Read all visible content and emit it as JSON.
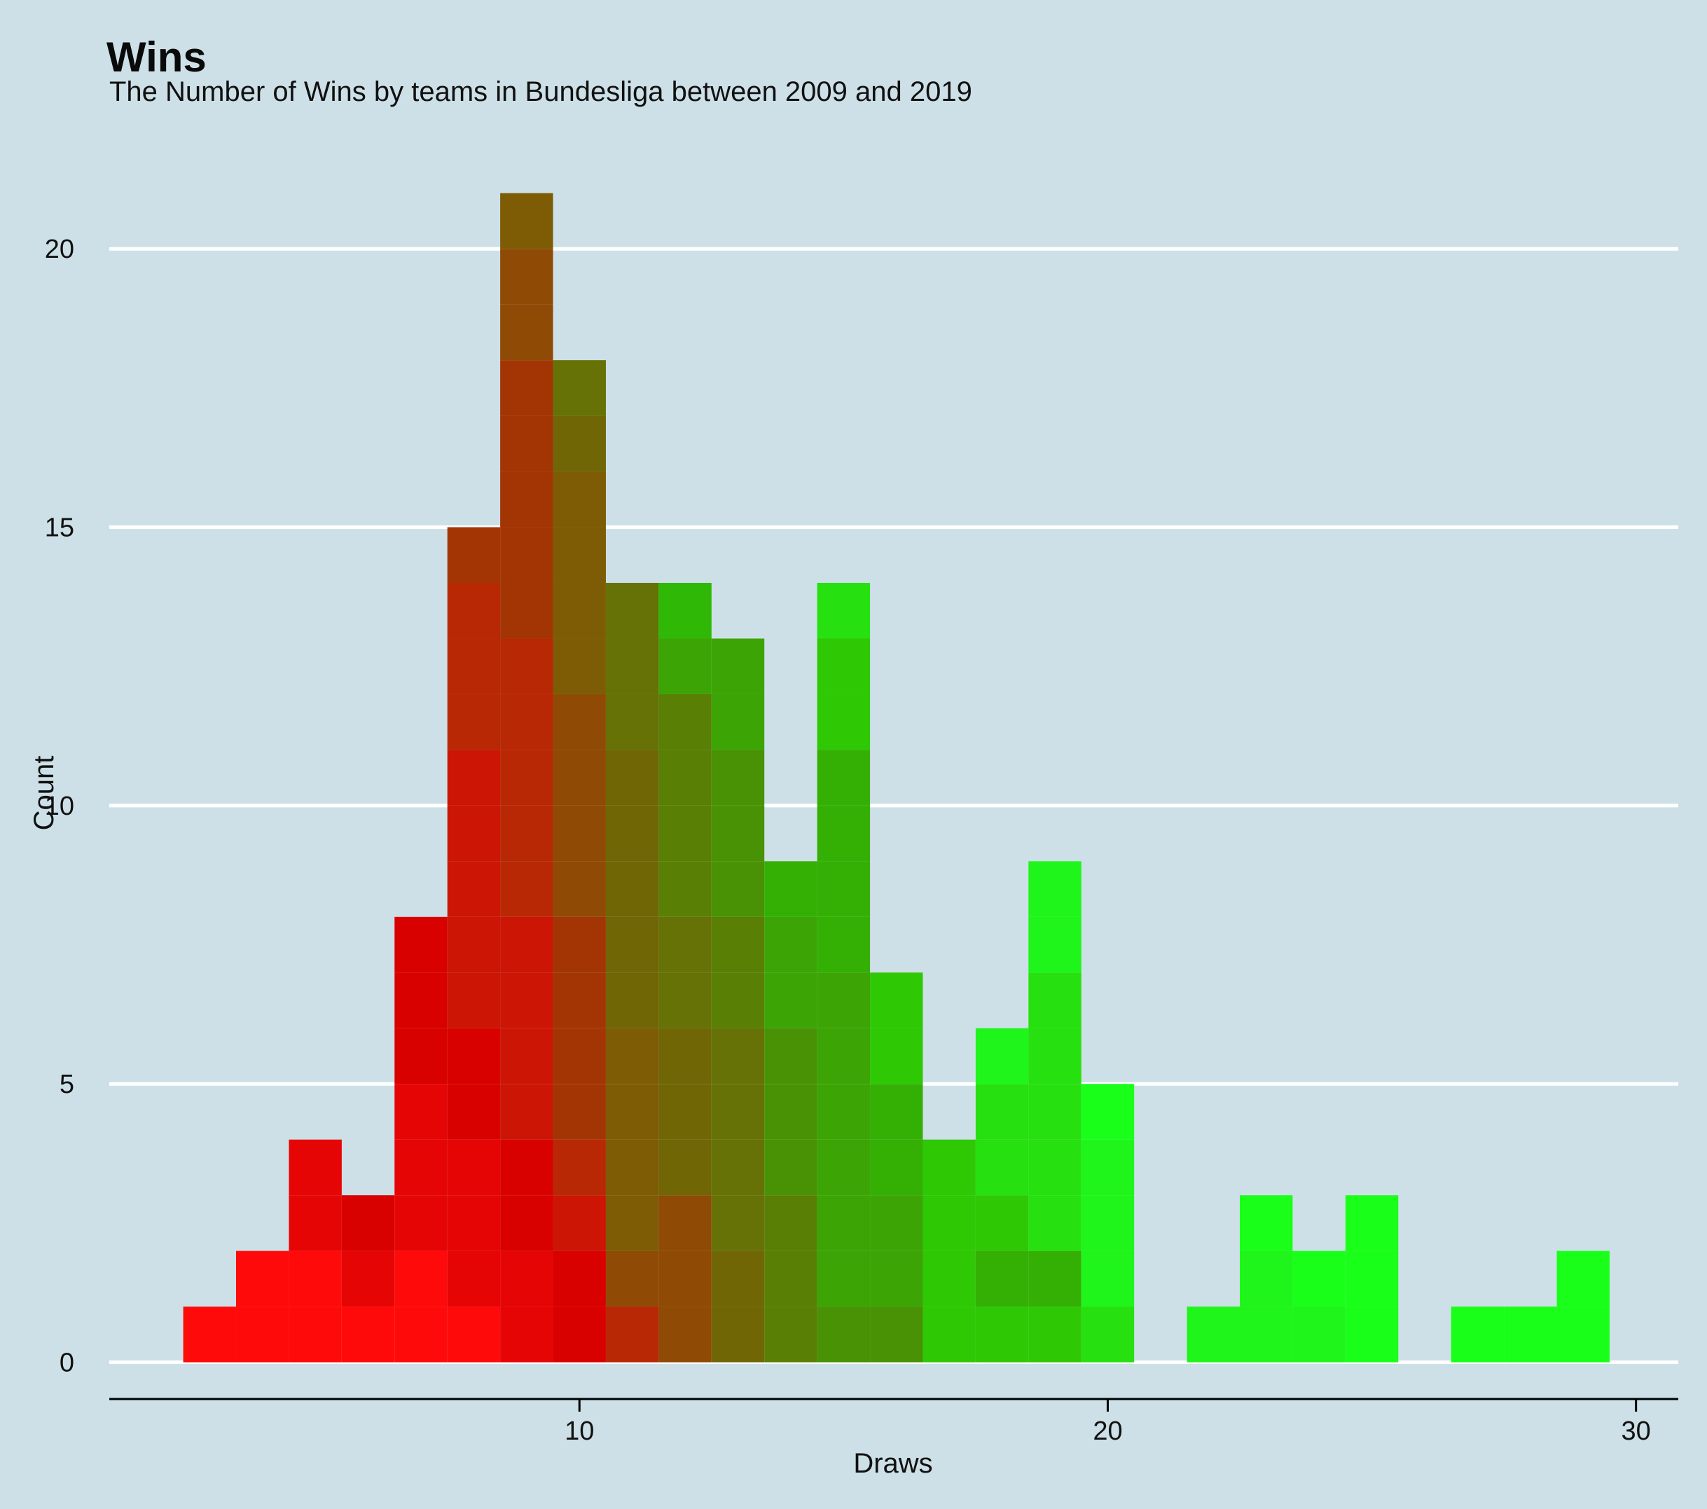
{
  "chart_data": {
    "type": "bar",
    "title": "Wins",
    "subtitle": "The Number of Wins by teams in Bundesliga between 2009 and 2019",
    "xlabel": "Draws",
    "ylabel": "Count",
    "xlim": [
      1.1,
      30.8
    ],
    "ylim": [
      -1.05,
      21.5
    ],
    "x_ticks": [
      10,
      20,
      30
    ],
    "y_ticks": [
      0,
      5,
      10,
      15,
      20
    ],
    "grid": "horizontal",
    "legend": "none",
    "bin_width": 1,
    "colors": {
      "background": "#cde0e7",
      "gridline": "#ffffff",
      "axis": "#000000",
      "low": "#ff0000",
      "high": "#1aff1a"
    },
    "bins": [
      {
        "x": 3,
        "segments": [
          {
            "count": 1,
            "color": "#ff0a0a"
          }
        ]
      },
      {
        "x": 4,
        "segments": [
          {
            "count": 1,
            "color": "#ff0a0a"
          },
          {
            "count": 1,
            "color": "#ff0a0a"
          }
        ]
      },
      {
        "x": 5,
        "segments": [
          {
            "count": 1,
            "color": "#ff0a0a"
          },
          {
            "count": 1,
            "color": "#ff0a0a"
          },
          {
            "count": 1,
            "color": "#e60505"
          },
          {
            "count": 1,
            "color": "#e60505"
          }
        ]
      },
      {
        "x": 6,
        "segments": [
          {
            "count": 1,
            "color": "#ff0a0a"
          },
          {
            "count": 1,
            "color": "#e60505"
          },
          {
            "count": 1,
            "color": "#d90000"
          }
        ]
      },
      {
        "x": 7,
        "segments": [
          {
            "count": 1,
            "color": "#ff0a0a"
          },
          {
            "count": 1,
            "color": "#ff0a0a"
          },
          {
            "count": 1,
            "color": "#e60505"
          },
          {
            "count": 1,
            "color": "#e60505"
          },
          {
            "count": 1,
            "color": "#e60505"
          },
          {
            "count": 1,
            "color": "#d90000"
          },
          {
            "count": 1,
            "color": "#d90000"
          },
          {
            "count": 1,
            "color": "#d90000"
          }
        ]
      },
      {
        "x": 8,
        "segments": [
          {
            "count": 1,
            "color": "#ff0a0a"
          },
          {
            "count": 1,
            "color": "#e60505"
          },
          {
            "count": 1,
            "color": "#e60505"
          },
          {
            "count": 1,
            "color": "#e60505"
          },
          {
            "count": 1,
            "color": "#d90000"
          },
          {
            "count": 1,
            "color": "#d90000"
          },
          {
            "count": 1,
            "color": "#cc1505"
          },
          {
            "count": 1,
            "color": "#cc1505"
          },
          {
            "count": 1,
            "color": "#cc1505"
          },
          {
            "count": 1,
            "color": "#cc1505"
          },
          {
            "count": 1,
            "color": "#cc1505"
          },
          {
            "count": 1,
            "color": "#b82805"
          },
          {
            "count": 1,
            "color": "#b82805"
          },
          {
            "count": 1,
            "color": "#b82805"
          },
          {
            "count": 1,
            "color": "#a33505"
          }
        ]
      },
      {
        "x": 9,
        "segments": [
          {
            "count": 1,
            "color": "#e60505"
          },
          {
            "count": 1,
            "color": "#e60505"
          },
          {
            "count": 1,
            "color": "#d90000"
          },
          {
            "count": 1,
            "color": "#d90000"
          },
          {
            "count": 1,
            "color": "#cc1505"
          },
          {
            "count": 1,
            "color": "#cc1505"
          },
          {
            "count": 1,
            "color": "#cc1505"
          },
          {
            "count": 1,
            "color": "#cc1505"
          },
          {
            "count": 1,
            "color": "#b82805"
          },
          {
            "count": 1,
            "color": "#b82805"
          },
          {
            "count": 1,
            "color": "#b82805"
          },
          {
            "count": 1,
            "color": "#b82805"
          },
          {
            "count": 1,
            "color": "#b82805"
          },
          {
            "count": 1,
            "color": "#a33505"
          },
          {
            "count": 1,
            "color": "#a33505"
          },
          {
            "count": 1,
            "color": "#a33505"
          },
          {
            "count": 1,
            "color": "#a33505"
          },
          {
            "count": 1,
            "color": "#a33505"
          },
          {
            "count": 1,
            "color": "#8f4a05"
          },
          {
            "count": 1,
            "color": "#8f4a05"
          },
          {
            "count": 1,
            "color": "#7d5c05"
          }
        ]
      },
      {
        "x": 10,
        "segments": [
          {
            "count": 1,
            "color": "#d90000"
          },
          {
            "count": 1,
            "color": "#d90000"
          },
          {
            "count": 1,
            "color": "#cc1505"
          },
          {
            "count": 1,
            "color": "#b82805"
          },
          {
            "count": 1,
            "color": "#a33505"
          },
          {
            "count": 1,
            "color": "#a33505"
          },
          {
            "count": 1,
            "color": "#a33505"
          },
          {
            "count": 1,
            "color": "#a33505"
          },
          {
            "count": 1,
            "color": "#8f4a05"
          },
          {
            "count": 1,
            "color": "#8f4a05"
          },
          {
            "count": 1,
            "color": "#8f4a05"
          },
          {
            "count": 1,
            "color": "#8f4a05"
          },
          {
            "count": 1,
            "color": "#7d5c05"
          },
          {
            "count": 1,
            "color": "#7d5c05"
          },
          {
            "count": 1,
            "color": "#7d5c05"
          },
          {
            "count": 1,
            "color": "#7d5c05"
          },
          {
            "count": 1,
            "color": "#706605"
          },
          {
            "count": 1,
            "color": "#667205"
          }
        ]
      },
      {
        "x": 11,
        "segments": [
          {
            "count": 1,
            "color": "#b82805"
          },
          {
            "count": 1,
            "color": "#8f4a05"
          },
          {
            "count": 1,
            "color": "#7d5c05"
          },
          {
            "count": 1,
            "color": "#7d5c05"
          },
          {
            "count": 1,
            "color": "#7d5c05"
          },
          {
            "count": 1,
            "color": "#7d5c05"
          },
          {
            "count": 1,
            "color": "#706605"
          },
          {
            "count": 1,
            "color": "#706605"
          },
          {
            "count": 1,
            "color": "#706605"
          },
          {
            "count": 1,
            "color": "#706605"
          },
          {
            "count": 1,
            "color": "#706605"
          },
          {
            "count": 1,
            "color": "#667205"
          },
          {
            "count": 1,
            "color": "#667205"
          },
          {
            "count": 1,
            "color": "#667205"
          }
        ]
      },
      {
        "x": 12,
        "segments": [
          {
            "count": 1,
            "color": "#8f4a05"
          },
          {
            "count": 1,
            "color": "#8f4a05"
          },
          {
            "count": 1,
            "color": "#8f4a05"
          },
          {
            "count": 1,
            "color": "#706605"
          },
          {
            "count": 1,
            "color": "#706605"
          },
          {
            "count": 1,
            "color": "#706605"
          },
          {
            "count": 1,
            "color": "#667205"
          },
          {
            "count": 1,
            "color": "#667205"
          },
          {
            "count": 1,
            "color": "#5a7f05"
          },
          {
            "count": 1,
            "color": "#5a7f05"
          },
          {
            "count": 1,
            "color": "#5a7f05"
          },
          {
            "count": 1,
            "color": "#5a7f05"
          },
          {
            "count": 1,
            "color": "#3ca505"
          },
          {
            "count": 1,
            "color": "#2fb805"
          }
        ]
      },
      {
        "x": 13,
        "segments": [
          {
            "count": 1,
            "color": "#706605"
          },
          {
            "count": 1,
            "color": "#706605"
          },
          {
            "count": 1,
            "color": "#667205"
          },
          {
            "count": 1,
            "color": "#667205"
          },
          {
            "count": 1,
            "color": "#667205"
          },
          {
            "count": 1,
            "color": "#667205"
          },
          {
            "count": 1,
            "color": "#5a7f05"
          },
          {
            "count": 1,
            "color": "#5a7f05"
          },
          {
            "count": 1,
            "color": "#4a9205"
          },
          {
            "count": 1,
            "color": "#4a9205"
          },
          {
            "count": 1,
            "color": "#4a9205"
          },
          {
            "count": 1,
            "color": "#3ca505"
          },
          {
            "count": 1,
            "color": "#3ca505"
          }
        ]
      },
      {
        "x": 14,
        "segments": [
          {
            "count": 1,
            "color": "#5a7f05"
          },
          {
            "count": 1,
            "color": "#5a7f05"
          },
          {
            "count": 1,
            "color": "#5a7f05"
          },
          {
            "count": 1,
            "color": "#4a9205"
          },
          {
            "count": 1,
            "color": "#4a9205"
          },
          {
            "count": 1,
            "color": "#4a9205"
          },
          {
            "count": 1,
            "color": "#3ca505"
          },
          {
            "count": 1,
            "color": "#3ca505"
          },
          {
            "count": 1,
            "color": "#34b005"
          }
        ]
      },
      {
        "x": 15,
        "segments": [
          {
            "count": 1,
            "color": "#4a9205"
          },
          {
            "count": 1,
            "color": "#3ca505"
          },
          {
            "count": 1,
            "color": "#3ca505"
          },
          {
            "count": 1,
            "color": "#3ca505"
          },
          {
            "count": 1,
            "color": "#3ca505"
          },
          {
            "count": 1,
            "color": "#3ca505"
          },
          {
            "count": 1,
            "color": "#3ca505"
          },
          {
            "count": 1,
            "color": "#34b005"
          },
          {
            "count": 1,
            "color": "#34b005"
          },
          {
            "count": 1,
            "color": "#34b005"
          },
          {
            "count": 1,
            "color": "#34b005"
          },
          {
            "count": 1,
            "color": "#2fc805"
          },
          {
            "count": 1,
            "color": "#2fc805"
          },
          {
            "count": 1,
            "color": "#26e010"
          }
        ]
      },
      {
        "x": 16,
        "segments": [
          {
            "count": 1,
            "color": "#4a9205"
          },
          {
            "count": 1,
            "color": "#3ca505"
          },
          {
            "count": 1,
            "color": "#3ca505"
          },
          {
            "count": 1,
            "color": "#34b005"
          },
          {
            "count": 1,
            "color": "#34b005"
          },
          {
            "count": 1,
            "color": "#2fc805"
          },
          {
            "count": 1,
            "color": "#2fc805"
          }
        ]
      },
      {
        "x": 17,
        "segments": [
          {
            "count": 1,
            "color": "#2fc805"
          },
          {
            "count": 1,
            "color": "#2fc805"
          },
          {
            "count": 1,
            "color": "#2fc805"
          },
          {
            "count": 1,
            "color": "#2fc805"
          }
        ]
      },
      {
        "x": 18,
        "segments": [
          {
            "count": 1,
            "color": "#2fc805"
          },
          {
            "count": 1,
            "color": "#34b005"
          },
          {
            "count": 1,
            "color": "#2fc805"
          },
          {
            "count": 1,
            "color": "#26e010"
          },
          {
            "count": 1,
            "color": "#26e010"
          },
          {
            "count": 1,
            "color": "#1ff51a"
          }
        ]
      },
      {
        "x": 19,
        "segments": [
          {
            "count": 1,
            "color": "#2fc805"
          },
          {
            "count": 1,
            "color": "#34b005"
          },
          {
            "count": 1,
            "color": "#26e010"
          },
          {
            "count": 1,
            "color": "#26e010"
          },
          {
            "count": 1,
            "color": "#26e010"
          },
          {
            "count": 1,
            "color": "#26e010"
          },
          {
            "count": 1,
            "color": "#26e010"
          },
          {
            "count": 1,
            "color": "#1ff51a"
          },
          {
            "count": 1,
            "color": "#1ff51a"
          }
        ]
      },
      {
        "x": 20,
        "segments": [
          {
            "count": 1,
            "color": "#26e010"
          },
          {
            "count": 1,
            "color": "#1ff51a"
          },
          {
            "count": 1,
            "color": "#1ff51a"
          },
          {
            "count": 1,
            "color": "#1ff51a"
          },
          {
            "count": 1,
            "color": "#1aff1a"
          }
        ]
      },
      {
        "x": 22,
        "segments": [
          {
            "count": 1,
            "color": "#1ff51a"
          }
        ]
      },
      {
        "x": 23,
        "segments": [
          {
            "count": 1,
            "color": "#1ff51a"
          },
          {
            "count": 1,
            "color": "#1ff51a"
          },
          {
            "count": 1,
            "color": "#1aff1a"
          }
        ]
      },
      {
        "x": 24,
        "segments": [
          {
            "count": 1,
            "color": "#1ff51a"
          },
          {
            "count": 1,
            "color": "#1aff1a"
          }
        ]
      },
      {
        "x": 25,
        "segments": [
          {
            "count": 1,
            "color": "#1aff1a"
          },
          {
            "count": 1,
            "color": "#1aff1a"
          },
          {
            "count": 1,
            "color": "#1aff1a"
          }
        ]
      },
      {
        "x": 27,
        "segments": [
          {
            "count": 1,
            "color": "#1aff1a"
          }
        ]
      },
      {
        "x": 28,
        "segments": [
          {
            "count": 1,
            "color": "#1aff1a"
          }
        ]
      },
      {
        "x": 29,
        "segments": [
          {
            "count": 1,
            "color": "#1aff1a"
          },
          {
            "count": 1,
            "color": "#1aff1a"
          }
        ]
      }
    ]
  }
}
